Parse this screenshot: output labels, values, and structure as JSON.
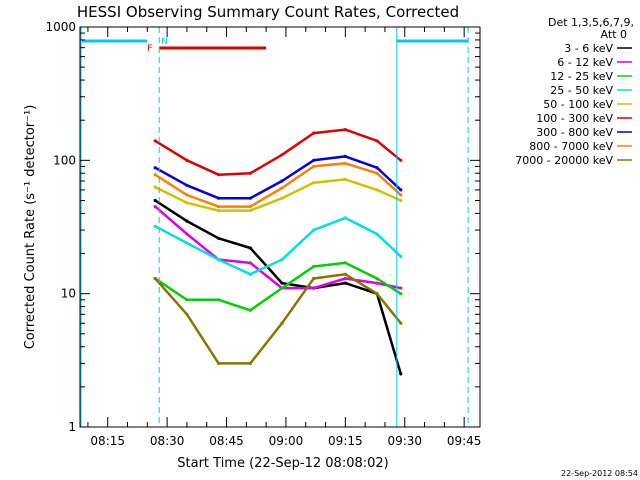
{
  "chart_data": {
    "type": "line",
    "title": "HESSI Observing Summary Count Rates, Corrected",
    "xlabel": "Start Time (22-Sep-12 08:08:02)",
    "ylabel": "Corrected Count Rate (s⁻¹ detector⁻¹)",
    "y_scale": "log",
    "ylim": [
      1,
      1000
    ],
    "xlim": [
      "08:08",
      "09:49"
    ],
    "x_ticks": [
      "08:15",
      "08:30",
      "08:45",
      "09:00",
      "09:15",
      "09:30",
      "09:45"
    ],
    "y_ticks": [
      "1",
      "10",
      "100",
      "1000"
    ],
    "footer": "22-Sep-2012 08:54",
    "legend": {
      "header_line1": "Det 1,3,5,6,7,9,",
      "header_line2": "Att 0",
      "placement": "right"
    },
    "flags": [
      {
        "label": "N",
        "color": "#00c8ff"
      },
      {
        "label": "F",
        "color": "#e00000"
      }
    ],
    "x": [
      "08:27",
      "08:35",
      "08:43",
      "08:51",
      "08:59",
      "09:07",
      "09:15",
      "09:23",
      "09:29"
    ],
    "series": [
      {
        "name": "3 - 6 keV",
        "color": "#000000",
        "values": [
          50,
          35,
          26,
          22,
          12,
          11,
          12,
          10,
          2.5
        ]
      },
      {
        "name": "6 - 12 keV",
        "color": "#e000e0",
        "values": [
          45,
          28,
          18,
          17,
          11,
          11,
          13,
          12,
          11
        ]
      },
      {
        "name": "12 - 25 keV",
        "color": "#00d000",
        "values": [
          13,
          9,
          9,
          7.5,
          11,
          16,
          17,
          13,
          10
        ]
      },
      {
        "name": "25 - 50 keV",
        "color": "#00e0e0",
        "values": [
          32,
          24,
          18,
          14,
          18,
          30,
          37,
          28,
          19
        ]
      },
      {
        "name": "50 - 100 keV",
        "color": "#d0c000",
        "values": [
          63,
          48,
          42,
          42,
          52,
          68,
          72,
          60,
          50
        ]
      },
      {
        "name": "100 - 300 keV",
        "color": "#e00000",
        "values": [
          140,
          100,
          78,
          80,
          110,
          160,
          170,
          140,
          100
        ]
      },
      {
        "name": "300 - 800 keV",
        "color": "#0000e0",
        "values": [
          88,
          65,
          52,
          52,
          70,
          100,
          107,
          88,
          60
        ]
      },
      {
        "name": "800 - 7000 keV",
        "color": "#ff8000",
        "values": [
          78,
          55,
          45,
          45,
          62,
          90,
          95,
          80,
          55
        ]
      },
      {
        "name": "7000 - 20000 keV",
        "color": "#8b7500",
        "values": [
          13,
          7,
          3,
          3,
          6,
          13,
          14,
          10,
          6
        ]
      }
    ]
  }
}
